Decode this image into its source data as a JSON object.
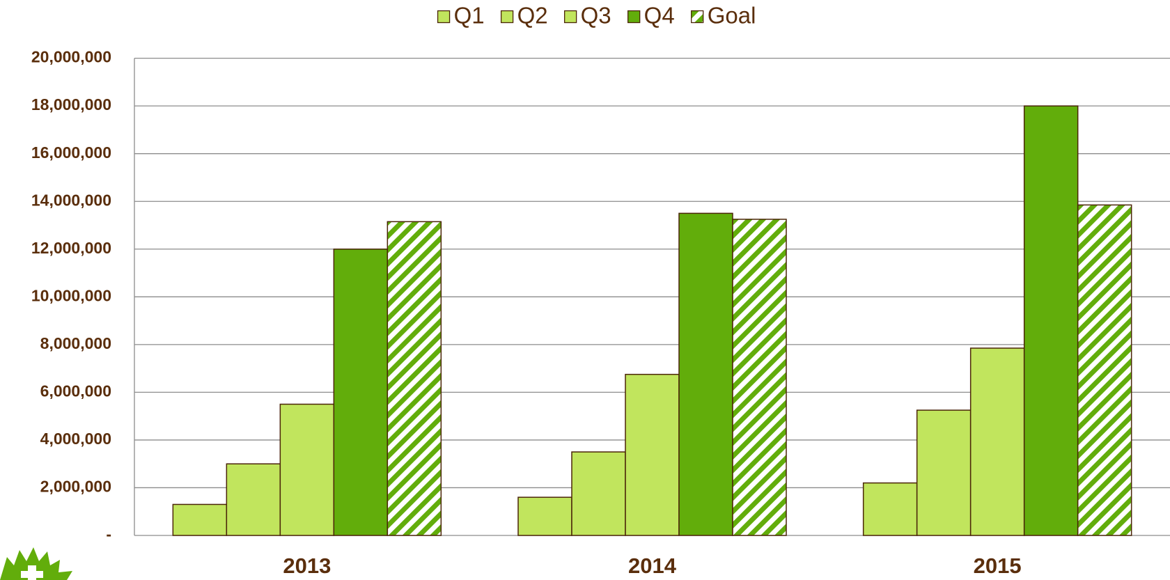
{
  "chart_data": {
    "type": "bar",
    "categories": [
      "2013",
      "2014",
      "2015"
    ],
    "series": [
      {
        "name": "Q1",
        "color": "#c1e55d",
        "values": [
          1300000,
          1600000,
          2200000
        ]
      },
      {
        "name": "Q2",
        "color": "#c1e55d",
        "values": [
          3000000,
          3500000,
          5250000
        ]
      },
      {
        "name": "Q3",
        "color": "#c1e55d",
        "values": [
          5500000,
          6750000,
          7850000
        ]
      },
      {
        "name": "Q4",
        "color": "#62ad0b",
        "values": [
          12000000,
          13500000,
          18000000
        ]
      },
      {
        "name": "Goal",
        "color": "#62ad0b",
        "hatch": true,
        "values": [
          13150000,
          13250000,
          13850000
        ]
      }
    ],
    "ylim": [
      0,
      20000000
    ],
    "yticks": [
      {
        "value": 0,
        "label": "-"
      },
      {
        "value": 2000000,
        "label": "2,000,000"
      },
      {
        "value": 4000000,
        "label": "4,000,000"
      },
      {
        "value": 6000000,
        "label": "6,000,000"
      },
      {
        "value": 8000000,
        "label": "8,000,000"
      },
      {
        "value": 10000000,
        "label": "10,000,000"
      },
      {
        "value": 12000000,
        "label": "12,000,000"
      },
      {
        "value": 14000000,
        "label": "14,000,000"
      },
      {
        "value": 16000000,
        "label": "16,000,000"
      },
      {
        "value": 18000000,
        "label": "18,000,000"
      },
      {
        "value": 20000000,
        "label": "20,000,000"
      }
    ],
    "grid": true,
    "legend": "top"
  }
}
